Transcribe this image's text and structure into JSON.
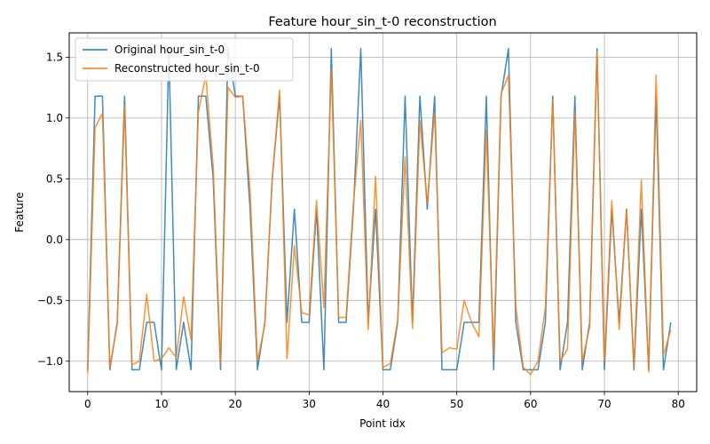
{
  "chart_data": {
    "type": "line",
    "title": "Feature hour_sin_t-0 reconstruction",
    "xlabel": "Point idx",
    "ylabel": "Feature",
    "xlim": [
      -2.5,
      82.5
    ],
    "ylim": [
      -1.25,
      1.7
    ],
    "xticks": [
      0,
      10,
      20,
      30,
      40,
      50,
      60,
      70,
      80
    ],
    "yticks": [
      -1.0,
      -0.5,
      0.0,
      0.5,
      1.0,
      1.5
    ],
    "xtick_labels": [
      "0",
      "10",
      "20",
      "30",
      "40",
      "50",
      "60",
      "70",
      "80"
    ],
    "ytick_labels": [
      "−1.0",
      "−0.5",
      "0.0",
      "0.5",
      "1.0",
      "1.5"
    ],
    "grid": true,
    "legend_position": "upper-left",
    "series": [
      {
        "name": "Original hour_sin_t-0",
        "color": "#1f77b4",
        "values": [
          -1.07,
          1.18,
          1.18,
          -1.07,
          -0.68,
          1.18,
          -1.07,
          -1.07,
          -0.68,
          -0.68,
          -1.07,
          1.57,
          -1.07,
          -0.68,
          -1.07,
          1.18,
          1.18,
          0.5,
          -1.07,
          1.57,
          1.18,
          1.18,
          0.25,
          -1.07,
          -0.68,
          0.5,
          1.18,
          -0.68,
          0.25,
          -0.68,
          -0.68,
          0.25,
          -1.07,
          1.57,
          -0.68,
          -0.68,
          0.25,
          1.57,
          -0.68,
          0.25,
          -1.07,
          -1.07,
          -0.68,
          1.18,
          -0.68,
          1.18,
          0.25,
          1.18,
          -1.07,
          -1.07,
          -1.07,
          -0.68,
          -0.68,
          -0.68,
          1.18,
          -1.07,
          1.18,
          1.57,
          -0.68,
          -1.07,
          -1.07,
          -1.07,
          -0.68,
          1.18,
          -1.07,
          -0.68,
          1.18,
          -1.07,
          -0.68,
          1.57,
          -1.07,
          0.25,
          -0.68,
          0.25,
          -1.07,
          0.25,
          -1.07,
          1.18,
          -1.07,
          -0.68
        ]
      },
      {
        "name": "Reconstructed hour_sin_t-0",
        "color": "#ff7f0e",
        "values": [
          -1.1,
          0.92,
          1.04,
          -1.05,
          -0.7,
          1.1,
          -1.03,
          -1.0,
          -0.45,
          -1.0,
          -0.98,
          -0.89,
          -0.97,
          -0.47,
          -0.82,
          1.05,
          1.35,
          0.6,
          -1.02,
          1.25,
          1.17,
          1.18,
          0.4,
          -1.0,
          -0.7,
          0.5,
          1.23,
          -0.98,
          -0.05,
          -0.6,
          -0.62,
          0.32,
          -0.56,
          1.4,
          -0.64,
          -0.64,
          0.3,
          0.98,
          -0.74,
          0.52,
          -1.05,
          -1.02,
          -0.66,
          0.68,
          -0.73,
          0.98,
          0.3,
          1.05,
          -0.93,
          -0.89,
          -0.9,
          -0.5,
          -0.68,
          -0.8,
          0.9,
          -0.95,
          1.2,
          1.35,
          -0.55,
          -1.05,
          -1.11,
          -1.0,
          -0.56,
          1.15,
          -1.0,
          -0.9,
          1.05,
          -1.0,
          -0.72,
          1.54,
          -1.0,
          0.32,
          -0.74,
          0.25,
          -1.04,
          0.49,
          -1.09,
          1.35,
          -0.95,
          -0.74
        ]
      }
    ]
  }
}
